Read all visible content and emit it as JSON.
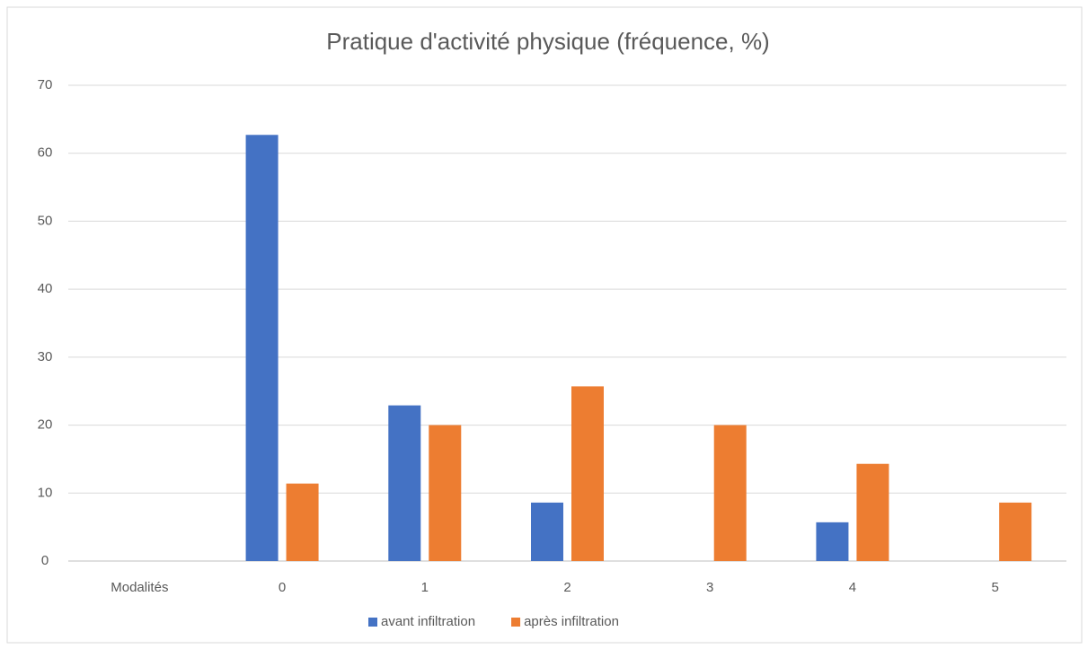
{
  "chart_data": {
    "type": "bar",
    "title": "Pratique d'activité physique (fréquence, %)",
    "categories": [
      "Modalités",
      "0",
      "1",
      "2",
      "3",
      "4",
      "5"
    ],
    "series": [
      {
        "name": "avant infiltration",
        "color": "#4472c4",
        "values": [
          null,
          62.7,
          22.9,
          8.6,
          0,
          5.7,
          0
        ]
      },
      {
        "name": "après infiltration",
        "color": "#ed7d31",
        "values": [
          null,
          11.4,
          20,
          25.7,
          20,
          14.3,
          8.6
        ]
      }
    ],
    "ylim": [
      0,
      70
    ],
    "yticks": [
      0,
      10,
      20,
      30,
      40,
      50,
      60,
      70
    ],
    "grid": true,
    "legend": "bottom"
  }
}
